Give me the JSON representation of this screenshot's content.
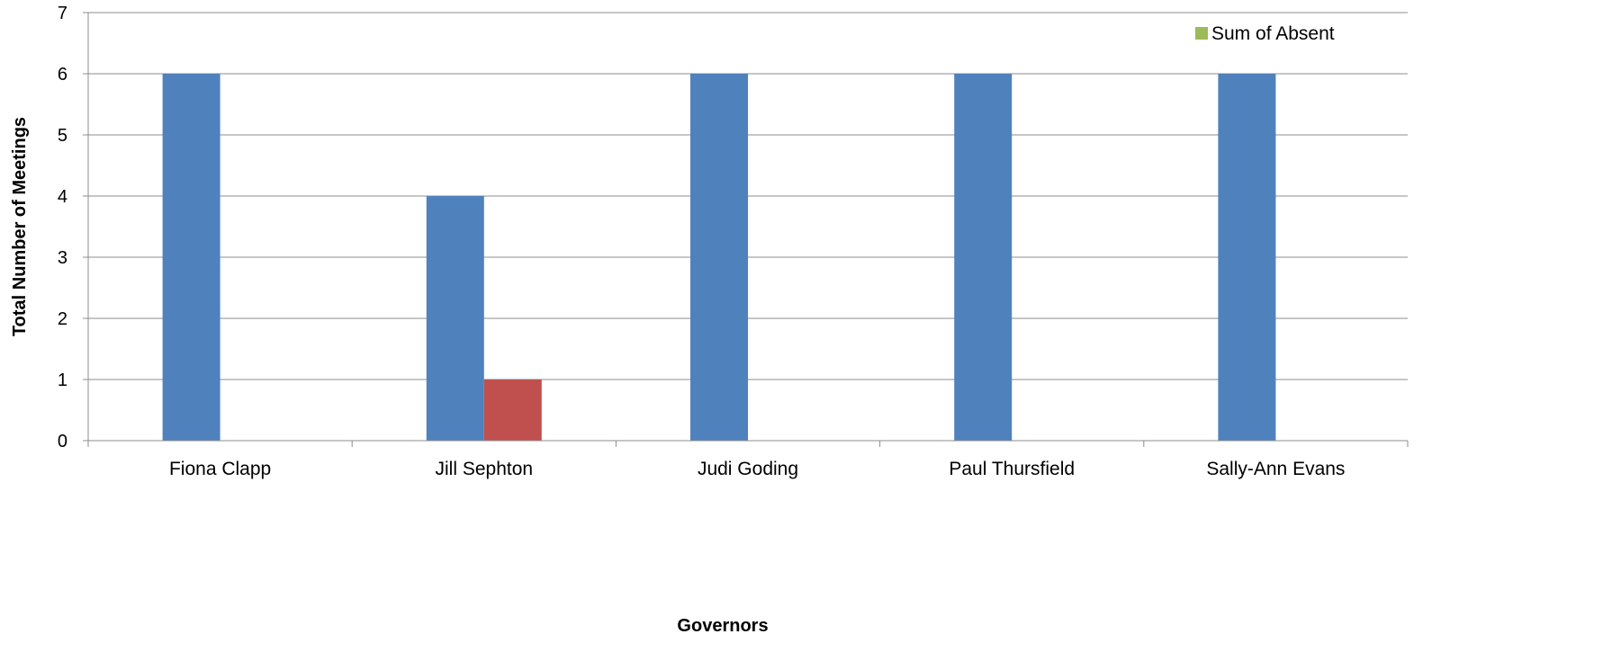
{
  "chart_data": {
    "type": "bar",
    "title": "",
    "xlabel": "Governors",
    "ylabel": "Total Number of Meetings",
    "ylim": [
      0,
      7
    ],
    "yticks": [
      0,
      1,
      2,
      3,
      4,
      5,
      6,
      7
    ],
    "grid": true,
    "legend_position": "top-right",
    "categories": [
      "Fiona Clapp",
      "Jill Sephton",
      "Judi Goding",
      "Paul Thursfield",
      "Sally-Ann Evans"
    ],
    "series": [
      {
        "values": [
          6,
          4,
          6,
          6,
          6
        ],
        "color": "#4F81BD"
      },
      {
        "values": [
          0,
          1,
          0,
          0,
          0
        ],
        "color": "#C0504D"
      }
    ],
    "legend": [
      {
        "label": "Sum of Absent",
        "color": "#9BBB59"
      }
    ]
  }
}
